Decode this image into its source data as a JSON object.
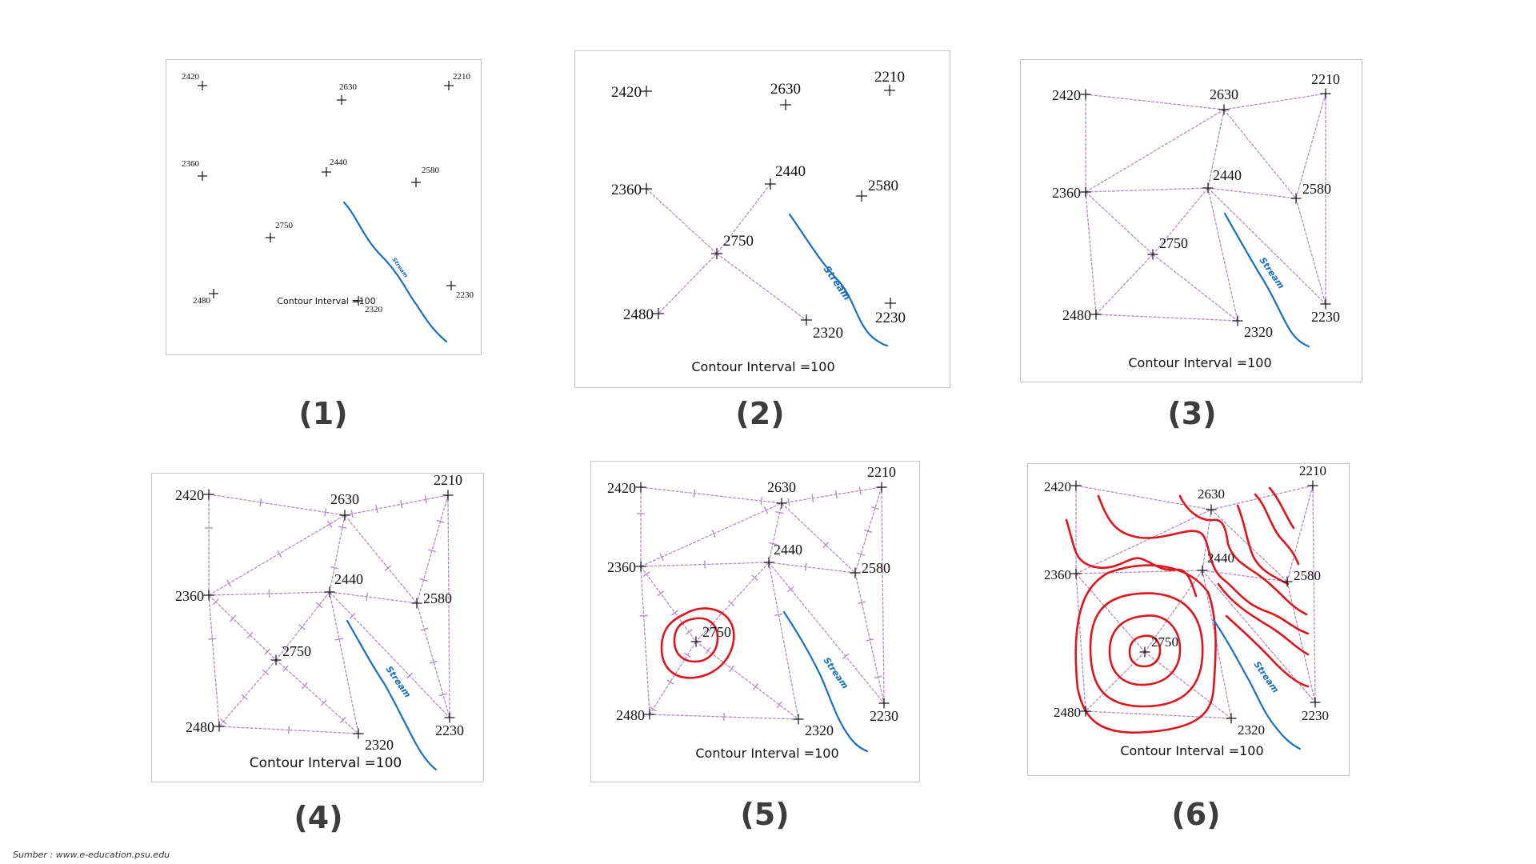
{
  "figure": {
    "contour_interval_label": "Contour Interval =100",
    "stream_label": "Stream",
    "source": "Sumber : www.e-education.psu.edu",
    "panels": [
      {
        "caption": "(1)"
      },
      {
        "caption": "(2)"
      },
      {
        "caption": "(3)"
      },
      {
        "caption": "(4)"
      },
      {
        "caption": "(5)"
      },
      {
        "caption": "(6)"
      }
    ],
    "points": [
      {
        "id": "p2420",
        "elevation": "2420"
      },
      {
        "id": "p2630",
        "elevation": "2630"
      },
      {
        "id": "p2210",
        "elevation": "2210"
      },
      {
        "id": "p2360",
        "elevation": "2360"
      },
      {
        "id": "p2440",
        "elevation": "2440"
      },
      {
        "id": "p2580",
        "elevation": "2580"
      },
      {
        "id": "p2750",
        "elevation": "2750"
      },
      {
        "id": "p2480",
        "elevation": "2480"
      },
      {
        "id": "p2320",
        "elevation": "2320"
      },
      {
        "id": "p2230",
        "elevation": "2230"
      }
    ],
    "colors": {
      "triangulation": "#b48cc4",
      "contour": "#e0141c",
      "stream": "#1a6fc4",
      "border": "#c4c4c4",
      "caption": "#3d3d3d"
    }
  }
}
